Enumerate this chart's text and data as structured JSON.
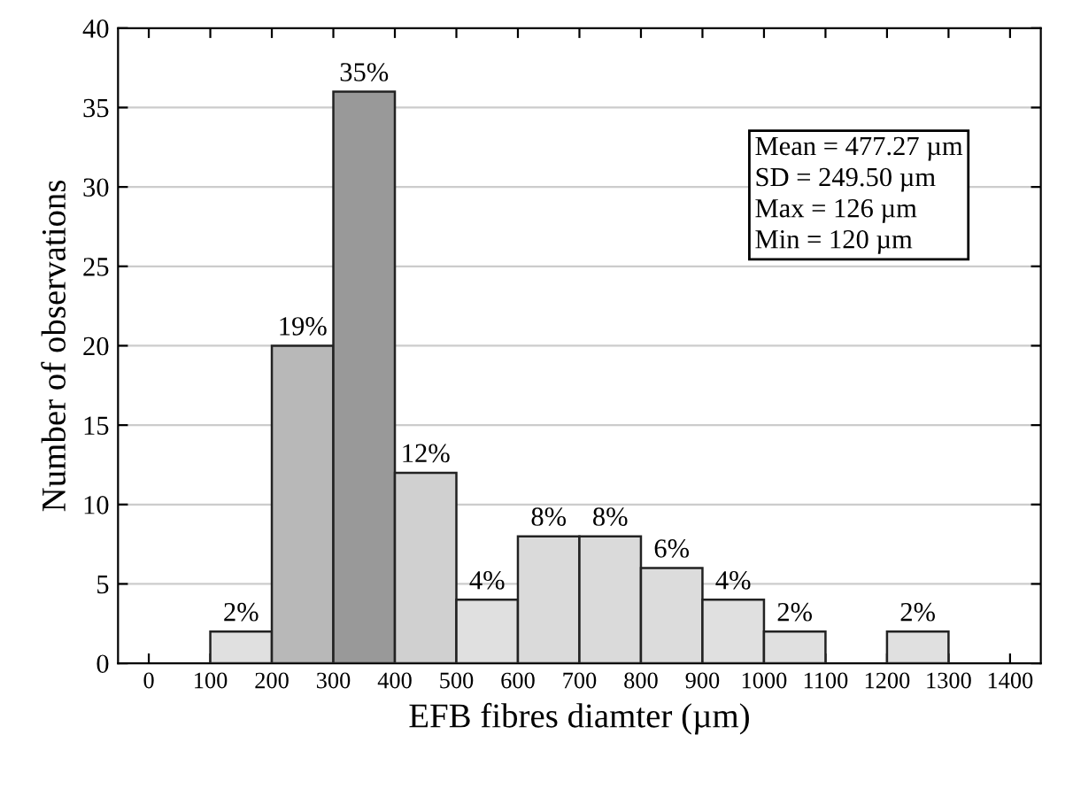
{
  "chart_data": {
    "type": "histogram",
    "xlabel": "EFB fibres diamter (µm)",
    "ylabel": "Number of observations",
    "bins": [
      100,
      200,
      300,
      400,
      500,
      600,
      700,
      800,
      900,
      1000,
      1100,
      1200,
      1300
    ],
    "values": [
      2,
      20,
      36,
      12,
      4,
      8,
      8,
      6,
      4,
      2,
      0,
      2
    ],
    "colors": [
      "#e0e0e0",
      "#b8b8b8",
      "#999999",
      "#d0d0d0",
      "#e0e0e0",
      "#dadada",
      "#dadada",
      "#dcdcdc",
      "#e0e0e0",
      "#e0e0e0",
      "#e0e0e0",
      "#e0e0e0"
    ],
    "xlim": [
      -50,
      1450
    ],
    "xticks": [
      0,
      100,
      200,
      300,
      400,
      500,
      600,
      700,
      800,
      900,
      1000,
      1100,
      1200,
      1300,
      1400
    ],
    "ylim": [
      0,
      40
    ],
    "yticks": [
      0,
      5,
      10,
      15,
      20,
      25,
      30,
      35,
      40
    ],
    "grid": "y",
    "annotations": [
      "Mean = 477.27 µm\nSD = 249.50 µm\nMax = 126 µm\nMin = 120 µm",
      {
        "text": "2%",
        "x": 150,
        "y": 2
      },
      {
        "text": "19%",
        "x": 250,
        "y": 20
      },
      {
        "text": "35%",
        "x": 350,
        "y": 36
      },
      {
        "text": "12%",
        "x": 450,
        "y": 12
      },
      {
        "text": "4%",
        "x": 550,
        "y": 4
      },
      {
        "text": "8%",
        "x": 650,
        "y": 8
      },
      {
        "text": "8%",
        "x": 750,
        "y": 8
      },
      {
        "text": "6%",
        "x": 850,
        "y": 6
      },
      {
        "text": "4%",
        "x": 950,
        "y": 4
      },
      {
        "text": "2%",
        "x": 1050,
        "y": 2
      },
      {
        "text": "2%",
        "x": 1250,
        "y": 2
      }
    ]
  }
}
